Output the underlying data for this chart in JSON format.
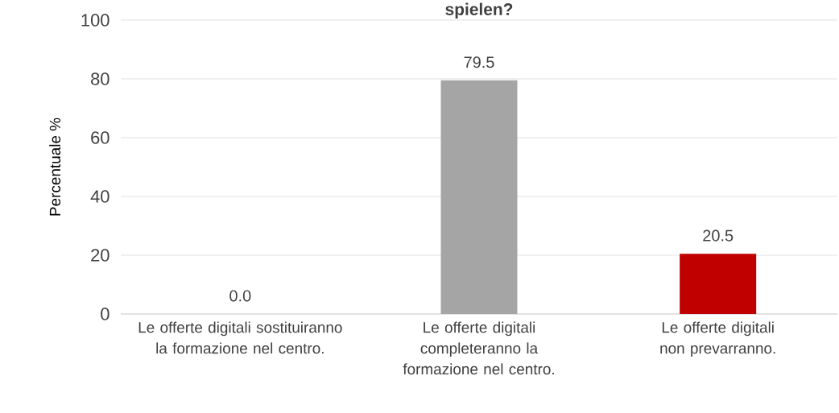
{
  "chart_data": {
    "type": "bar",
    "title": "spielen?",
    "ylabel": "Percentuale %",
    "categories": [
      "Le offerte digitali sostituiranno la formazione nel centro.",
      "Le offerte digitali completeranno la formazione nel centro.",
      "Le offerte digitali non prevarranno."
    ],
    "values": [
      0.0,
      79.5,
      20.5
    ],
    "colors": [
      "#a5a5a5",
      "#a5a5a5",
      "#c00000"
    ],
    "value_labels": [
      "0.0",
      "79.5",
      "20.5"
    ],
    "ylim": [
      0,
      100
    ],
    "yticks": [
      0,
      20,
      40,
      60,
      80,
      100
    ],
    "grid": "y"
  }
}
